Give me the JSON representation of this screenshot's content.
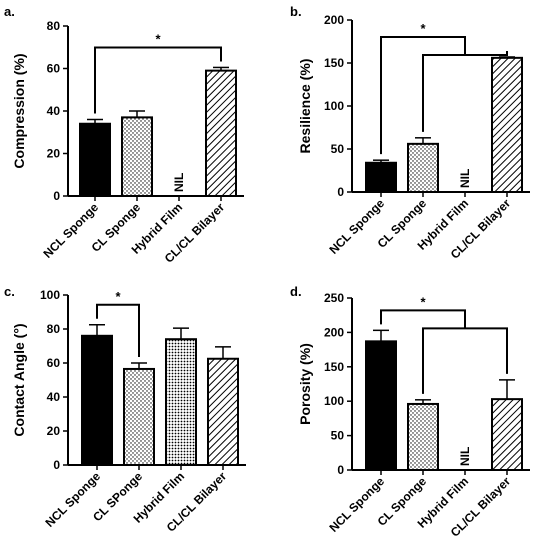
{
  "pattern_colors": {
    "solid": "#000000",
    "dots": "#000000",
    "hatch": "#000000",
    "background": "#ffffff"
  },
  "chart_data": [
    {
      "panel": "a.",
      "type": "bar",
      "ylabel": "Compression (%)",
      "ylim": [
        0,
        80
      ],
      "yticks": [
        0,
        20,
        40,
        60,
        80
      ],
      "categories": [
        "NCL Sponge",
        "CL Sponge",
        "Hybrid Film",
        "CL/CL Bilayer"
      ],
      "values": [
        34,
        37,
        null,
        59
      ],
      "errors": [
        2,
        3,
        null,
        1.5
      ],
      "patterns": [
        "solid",
        "dots",
        "none",
        "hatch"
      ],
      "nil_labels": [
        "",
        "",
        "NIL",
        ""
      ],
      "significance": [
        {
          "label": "*",
          "from": [
            0
          ],
          "to": [
            3
          ]
        }
      ]
    },
    {
      "panel": "b.",
      "type": "bar",
      "ylabel": "Resilience (%)",
      "ylim": [
        0,
        200
      ],
      "yticks": [
        0,
        50,
        100,
        150,
        200
      ],
      "categories": [
        "NCL Sponge",
        "CL Sponge",
        "Hybrid Film",
        "CL/CL Bilayer"
      ],
      "values": [
        34,
        56,
        null,
        156
      ],
      "errors": [
        3,
        7,
        null,
        1
      ],
      "patterns": [
        "solid",
        "dots",
        "none",
        "hatch"
      ],
      "nil_labels": [
        "",
        "",
        "NIL",
        ""
      ],
      "significance": [
        {
          "label": "*",
          "from": [
            0
          ],
          "to": [
            1,
            3
          ]
        }
      ]
    },
    {
      "panel": "c.",
      "type": "bar",
      "ylabel": "Contact Angle (°)",
      "ylim": [
        0,
        100
      ],
      "yticks": [
        0,
        20,
        40,
        60,
        80,
        100
      ],
      "categories": [
        "NCL Sponge",
        "CL SPonge",
        "Hybrid Film",
        "CL/CL Bilayer"
      ],
      "values": [
        76,
        56.5,
        74,
        62.5
      ],
      "errors": [
        6.5,
        3.5,
        6.5,
        7
      ],
      "patterns": [
        "solid",
        "dots",
        "dots-dense",
        "hatch"
      ],
      "nil_labels": [
        "",
        "",
        "",
        ""
      ],
      "significance": [
        {
          "label": "*",
          "from": [
            0
          ],
          "to": [
            1
          ]
        }
      ]
    },
    {
      "panel": "d.",
      "type": "bar",
      "ylabel": "Porosity (%)",
      "ylim": [
        0,
        250
      ],
      "yticks": [
        0,
        50,
        100,
        150,
        200,
        250
      ],
      "categories": [
        "NCL Sponge",
        "CL Sponge",
        "Hybrid Film",
        "CL/CL Bilayer"
      ],
      "values": [
        187,
        96,
        null,
        103
      ],
      "errors": [
        16,
        6,
        null,
        28
      ],
      "patterns": [
        "solid",
        "dots",
        "none",
        "hatch"
      ],
      "nil_labels": [
        "",
        "",
        "NIL",
        ""
      ],
      "significance": [
        {
          "label": "*",
          "from": [
            0
          ],
          "to": [
            1,
            3
          ]
        }
      ]
    }
  ]
}
